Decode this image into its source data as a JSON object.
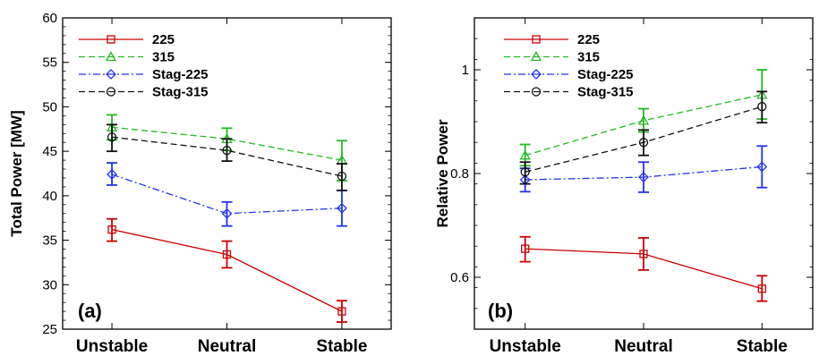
{
  "chart_data": [
    {
      "type": "line",
      "panel_label": "(a)",
      "ylabel": "Total Power [MW]",
      "xlabel": "",
      "categories": [
        "Unstable",
        "Neutral",
        "Stable"
      ],
      "ylim": [
        25,
        60
      ],
      "yticks": [
        25,
        30,
        35,
        40,
        45,
        50,
        55,
        60
      ],
      "ytick_labels": [
        "25",
        "30",
        "35",
        "40",
        "45",
        "50",
        "55",
        "60"
      ],
      "legend_position": "top-left",
      "series": [
        {
          "name": "225",
          "color": "#cc0000",
          "dash": "solid",
          "marker": "square",
          "values": [
            36.2,
            33.4,
            27.0
          ],
          "err_low": [
            34.9,
            31.9,
            25.8
          ],
          "err_high": [
            37.4,
            34.9,
            28.2
          ]
        },
        {
          "name": "315",
          "color": "#22bb22",
          "dash": "dashed",
          "marker": "triangle",
          "values": [
            47.7,
            46.4,
            44.0
          ],
          "err_low": [
            46.3,
            45.1,
            41.7
          ],
          "err_high": [
            49.1,
            47.6,
            46.2
          ]
        },
        {
          "name": "Stag-225",
          "color": "#2233ee",
          "dash": "dashdot",
          "marker": "diamond",
          "values": [
            42.4,
            38.0,
            38.6
          ],
          "err_low": [
            41.2,
            36.6,
            36.6
          ],
          "err_high": [
            43.7,
            39.3,
            40.6
          ]
        },
        {
          "name": "Stag-315",
          "color": "#111111",
          "dash": "dashed",
          "marker": "circle",
          "values": [
            46.6,
            45.1,
            42.2
          ],
          "err_low": [
            45.0,
            43.9,
            40.6
          ],
          "err_high": [
            48.0,
            46.4,
            43.6
          ]
        }
      ]
    },
    {
      "type": "line",
      "panel_label": "(b)",
      "ylabel": "Relative Power",
      "xlabel": "",
      "categories": [
        "Unstable",
        "Neutral",
        "Stable"
      ],
      "ylim": [
        0.5,
        1.1
      ],
      "yticks": [
        0.6,
        0.8,
        1.0
      ],
      "ytick_labels": [
        "0.6",
        "0.8",
        "1"
      ],
      "legend_position": "top-left",
      "series": [
        {
          "name": "225",
          "color": "#cc0000",
          "dash": "solid",
          "marker": "square",
          "values": [
            0.655,
            0.645,
            0.578
          ],
          "err_low": [
            0.63,
            0.614,
            0.554
          ],
          "err_high": [
            0.678,
            0.676,
            0.603
          ]
        },
        {
          "name": "315",
          "color": "#22bb22",
          "dash": "dashed",
          "marker": "triangle",
          "values": [
            0.835,
            0.902,
            0.952
          ],
          "err_low": [
            0.815,
            0.88,
            0.905
          ],
          "err_high": [
            0.856,
            0.925,
            1.0
          ]
        },
        {
          "name": "Stag-225",
          "color": "#2233ee",
          "dash": "dashdot",
          "marker": "diamond",
          "values": [
            0.788,
            0.793,
            0.813
          ],
          "err_low": [
            0.765,
            0.764,
            0.773
          ],
          "err_high": [
            0.81,
            0.822,
            0.853
          ]
        },
        {
          "name": "Stag-315",
          "color": "#111111",
          "dash": "dashed",
          "marker": "circle",
          "values": [
            0.803,
            0.86,
            0.929
          ],
          "err_low": [
            0.78,
            0.835,
            0.898
          ],
          "err_high": [
            0.822,
            0.884,
            0.958
          ]
        }
      ]
    }
  ]
}
